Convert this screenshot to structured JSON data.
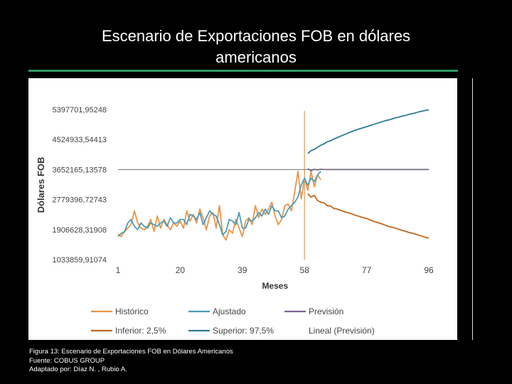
{
  "slide": {
    "title_line1": "Escenario de Exportaciones FOB en dólares",
    "title_line2": "americanos",
    "caption_line1": "Figura 13: Escenario de Exportaciones FOB en Dólares Americanos",
    "caption_line2": "Fuente: COBUS GROUP",
    "caption_line3": "Adaptado por: Díaz N. , Rubio A."
  },
  "colors": {
    "historico": "#e8954a",
    "ajustado": "#4a9db5",
    "prevision": "#7b6494",
    "inferior": "#c0651d",
    "superior": "#2f7b92",
    "lineal": "#6e6e6e",
    "separator": "#d89a57"
  },
  "chart_data": {
    "type": "line",
    "title": "",
    "xlabel": "Meses",
    "ylabel": "Dólares FOB",
    "xlim": [
      1,
      96
    ],
    "ylim": [
      1033859.91074,
      5397701.95248
    ],
    "x_ticks": [
      "1",
      "20",
      "39",
      "58",
      "77",
      "96"
    ],
    "y_ticks": [
      "5397701,95248",
      "4524933,54413",
      "3652165,13578",
      "2779396,72743",
      "1906628,31908",
      "1033859,91074"
    ],
    "y_tick_values": [
      5397701.95248,
      4524933.54413,
      3652165.13578,
      2779396.72743,
      1906628.31908,
      1033859.91074
    ],
    "forecast_start": 58,
    "series": [
      {
        "name": "Histórico",
        "key": "historico",
        "x_start": 1,
        "values": [
          1780000,
          1700000,
          1850000,
          1950000,
          2050000,
          2450000,
          2100000,
          1950000,
          1900000,
          2000000,
          2200000,
          1850000,
          2300000,
          1950000,
          2200000,
          2050000,
          1900000,
          2100000,
          2000000,
          2150000,
          1950000,
          2450000,
          2150000,
          2350000,
          2100000,
          2500000,
          2250000,
          1900000,
          2300000,
          2400000,
          1950000,
          2600000,
          1750000,
          1600000,
          1900000,
          1800000,
          2200000,
          1950000,
          1700000,
          2150000,
          2250000,
          2050000,
          2600000,
          2250000,
          2500000,
          2350000,
          2500000,
          2700000,
          2300000,
          2050000,
          2200000,
          2600000,
          2650000,
          2450000,
          3000000,
          3600000,
          2800000,
          3400000,
          3050000,
          3600000,
          3150000,
          3500000,
          3350000
        ]
      },
      {
        "name": "Ajustado",
        "key": "ajustado",
        "x_start": 1,
        "values": [
          1700000,
          1800000,
          1850000,
          2100000,
          2200000,
          2000000,
          1900000,
          2100000,
          2000000,
          1950000,
          2100000,
          2050000,
          2000000,
          2100000,
          2150000,
          2000000,
          2250000,
          2100000,
          2100000,
          2200000,
          2200000,
          2050000,
          2350000,
          2300000,
          2200000,
          2400000,
          2050000,
          2250000,
          2450000,
          2350000,
          2300000,
          2050000,
          1750000,
          1850000,
          2200000,
          2150000,
          2050000,
          2400000,
          1950000,
          1950000,
          2200000,
          2150000,
          2250000,
          2400000,
          2300000,
          2500000,
          2350000,
          2600000,
          2450000,
          2450000,
          2250000,
          2300000,
          2500000,
          2600000,
          2700000,
          2850000,
          3200000,
          3400000,
          3200000,
          3400000,
          3300000,
          3500000,
          3600000
        ]
      },
      {
        "name": "Previsión",
        "key": "prevision",
        "x_start": 59,
        "values": [
          3680000,
          3620000,
          3660000,
          3640000,
          3660000,
          3652165,
          3652165,
          3652165,
          3652165,
          3652165,
          3652165,
          3652165,
          3652165,
          3652165,
          3652165,
          3652165,
          3652165,
          3652165,
          3652165,
          3652165,
          3652165,
          3652165,
          3652165,
          3652165,
          3652165,
          3652165,
          3652165,
          3652165,
          3652165,
          3652165,
          3652165,
          3652165,
          3652165,
          3652165,
          3652165,
          3652165,
          3652165,
          3652165
        ]
      },
      {
        "name": "Inferior: 2,5%",
        "key": "inferior",
        "x_start": 59,
        "values": [
          2950000,
          2850000,
          2900000,
          2750000,
          2700000,
          2680000,
          2600000,
          2590000,
          2520000,
          2500000,
          2470000,
          2430000,
          2400000,
          2380000,
          2340000,
          2310000,
          2280000,
          2250000,
          2230000,
          2190000,
          2150000,
          2120000,
          2090000,
          2060000,
          2020000,
          1990000,
          1970000,
          1940000,
          1910000,
          1880000,
          1850000,
          1820000,
          1800000,
          1770000,
          1740000,
          1710000,
          1680000,
          1660000
        ]
      },
      {
        "name": "Superior: 97,5%",
        "key": "superior",
        "x_start": 59,
        "values": [
          4120000,
          4200000,
          4240000,
          4300000,
          4360000,
          4400000,
          4460000,
          4490000,
          4540000,
          4580000,
          4620000,
          4660000,
          4700000,
          4740000,
          4780000,
          4810000,
          4840000,
          4870000,
          4900000,
          4930000,
          4960000,
          4990000,
          5020000,
          5050000,
          5080000,
          5100000,
          5130000,
          5160000,
          5180000,
          5210000,
          5230000,
          5260000,
          5280000,
          5300000,
          5330000,
          5350000,
          5370000,
          5390000
        ]
      },
      {
        "name": "Lineal (Previsión)",
        "key": "lineal",
        "x_start": 1,
        "values": [
          3652165,
          3652165
        ],
        "x_values": [
          1,
          96
        ]
      }
    ],
    "legend": {
      "position": "bottom",
      "row1": [
        "Histórico",
        "Ajustado",
        "Previsión"
      ],
      "row2": [
        "Inferior: 2,5%",
        "Superior: 97,5%",
        "Lineal (Previsión)"
      ]
    }
  }
}
